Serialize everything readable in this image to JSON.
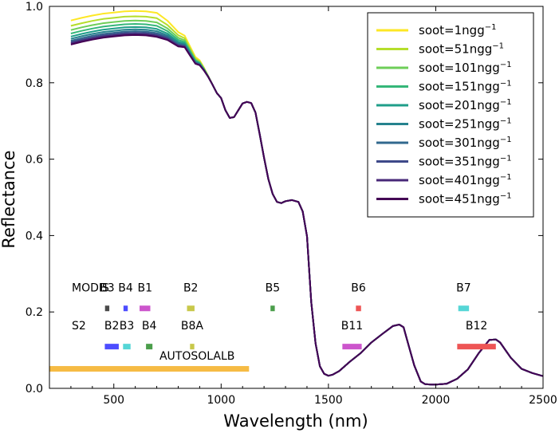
{
  "chart_data": {
    "type": "line",
    "title": "",
    "xlabel": "Wavelength (nm)",
    "ylabel": "Reflectance",
    "xlim": [
      200,
      2500
    ],
    "ylim": [
      0,
      1.0
    ],
    "xticks": [
      500,
      1000,
      1500,
      2000,
      2500
    ],
    "xtick_labels": [
      "500",
      "1000",
      "1500",
      "2000",
      "2500"
    ],
    "yticks": [
      0.0,
      0.2,
      0.4,
      0.6,
      0.8,
      1.0
    ],
    "ytick_labels": [
      "0.0",
      "0.2",
      "0.4",
      "0.6",
      "0.8",
      "1.0"
    ],
    "grid": false,
    "legend_position": "top-right",
    "series": [
      {
        "name": "soot=1ngg",
        "label_suffix": "−1",
        "color": "#fde725",
        "visible_offset": 0.063
      },
      {
        "name": "soot=51ngg",
        "label_suffix": "−1",
        "color": "#b5de2b",
        "visible_offset": 0.049
      },
      {
        "name": "soot=101ngg",
        "label_suffix": "−1",
        "color": "#6ece58",
        "visible_offset": 0.038
      },
      {
        "name": "soot=151ngg",
        "label_suffix": "−1",
        "color": "#35b779",
        "visible_offset": 0.029
      },
      {
        "name": "soot=201ngg",
        "label_suffix": "−1",
        "color": "#1f9e89",
        "visible_offset": 0.021
      },
      {
        "name": "soot=251ngg",
        "label_suffix": "−1",
        "color": "#26828e",
        "visible_offset": 0.015
      },
      {
        "name": "soot=301ngg",
        "label_suffix": "−1",
        "color": "#31688e",
        "visible_offset": 0.01
      },
      {
        "name": "soot=351ngg",
        "label_suffix": "−1",
        "color": "#3e4989",
        "visible_offset": 0.006
      },
      {
        "name": "soot=401ngg",
        "label_suffix": "−1",
        "color": "#482878",
        "visible_offset": 0.003
      },
      {
        "name": "soot=451ngg",
        "label_suffix": "−1",
        "color": "#440154",
        "visible_offset": 0.0
      }
    ],
    "base_curve": {
      "x": [
        300,
        350,
        400,
        450,
        500,
        550,
        600,
        650,
        700,
        750,
        800,
        830,
        860,
        880,
        900,
        920,
        940,
        960,
        980,
        1000,
        1020,
        1040,
        1060,
        1080,
        1100,
        1120,
        1140,
        1160,
        1180,
        1200,
        1220,
        1240,
        1260,
        1280,
        1300,
        1330,
        1360,
        1380,
        1400,
        1420,
        1440,
        1460,
        1480,
        1500,
        1520,
        1550,
        1600,
        1650,
        1700,
        1750,
        1800,
        1830,
        1850,
        1870,
        1900,
        1930,
        1950,
        1980,
        2000,
        2050,
        2100,
        2150,
        2200,
        2250,
        2280,
        2300,
        2350,
        2400,
        2450,
        2500
      ],
      "y": [
        0.9,
        0.907,
        0.913,
        0.918,
        0.921,
        0.924,
        0.925,
        0.924,
        0.92,
        0.912,
        0.895,
        0.893,
        0.867,
        0.85,
        0.846,
        0.832,
        0.815,
        0.795,
        0.773,
        0.76,
        0.728,
        0.708,
        0.71,
        0.728,
        0.746,
        0.75,
        0.747,
        0.722,
        0.665,
        0.604,
        0.548,
        0.509,
        0.488,
        0.485,
        0.49,
        0.493,
        0.488,
        0.463,
        0.398,
        0.226,
        0.118,
        0.058,
        0.038,
        0.033,
        0.036,
        0.045,
        0.07,
        0.092,
        0.12,
        0.142,
        0.163,
        0.167,
        0.16,
        0.12,
        0.06,
        0.018,
        0.011,
        0.01,
        0.01,
        0.012,
        0.025,
        0.05,
        0.092,
        0.127,
        0.128,
        0.12,
        0.08,
        0.051,
        0.04,
        0.032
      ]
    },
    "band_groups": [
      {
        "name": "MODIS",
        "y": 0.25,
        "bands": [
          {
            "label": "B3",
            "range": [
              459,
              479
            ],
            "color": "#4a4a4a"
          },
          {
            "label": "B4",
            "range": [
              545,
              565
            ],
            "color": "#4d4dff"
          },
          {
            "label": "B1",
            "range": [
              620,
              670
            ],
            "color": "#cc55cc"
          },
          {
            "label": "B2",
            "range": [
              841,
              876
            ],
            "color": "#c8c84a"
          },
          {
            "label": "B5",
            "range": [
              1230,
              1250
            ],
            "color": "#4b9e4b"
          },
          {
            "label": "B6",
            "range": [
              1628,
              1652
            ],
            "color": "#ee5555"
          },
          {
            "label": "B7",
            "range": [
              2105,
              2155
            ],
            "color": "#55d6d6"
          }
        ]
      },
      {
        "name": "S2",
        "y": 0.15,
        "bands": [
          {
            "label": "B2",
            "range": [
              458,
              523
            ],
            "color": "#4d4dff"
          },
          {
            "label": "B3",
            "range": [
              543,
              578
            ],
            "color": "#55d6d6"
          },
          {
            "label": "B4",
            "range": [
              650,
              680
            ],
            "color": "#4b9e4b"
          },
          {
            "label": "B8A",
            "range": [
              855,
              875
            ],
            "color": "#c8c84a"
          },
          {
            "label": "B11",
            "range": [
              1565,
              1655
            ],
            "color": "#cc55cc"
          },
          {
            "label": "B12",
            "range": [
              2100,
              2280
            ],
            "color": "#ee5555"
          }
        ]
      }
    ],
    "extra_bands": [
      {
        "label": "AUTOSOLALB",
        "range": [
          200,
          1130
        ],
        "y": 0.05,
        "color": "#f6bb44"
      }
    ]
  }
}
